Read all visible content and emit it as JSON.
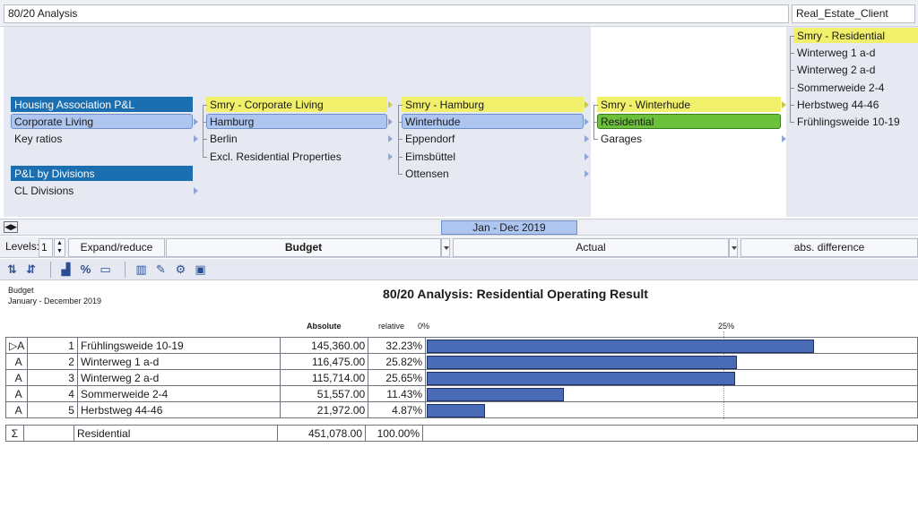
{
  "window": {
    "title": "80/20 Analysis",
    "client": "Real_Estate_Client"
  },
  "nav": {
    "col1": [
      {
        "label": "Housing Association P&L",
        "state": "dark"
      },
      {
        "label": "Corporate Living",
        "state": "light"
      },
      {
        "label": "Key ratios",
        "state": "none"
      },
      {
        "label": "P&L by Divisions",
        "state": "dark"
      },
      {
        "label": "CL Divisions",
        "state": "none"
      }
    ],
    "col2": [
      {
        "label": "Smry -  Corporate Living",
        "state": "smry"
      },
      {
        "label": "Hamburg",
        "state": "light"
      },
      {
        "label": "Berlin",
        "state": "none"
      },
      {
        "label": "Excl. Residential Properties",
        "state": "none"
      }
    ],
    "col3": [
      {
        "label": "Smry -  Hamburg",
        "state": "smry"
      },
      {
        "label": "Winterhude",
        "state": "light"
      },
      {
        "label": "Eppendorf",
        "state": "none"
      },
      {
        "label": "Eimsbüttel",
        "state": "none"
      },
      {
        "label": "Ottensen",
        "state": "none"
      }
    ],
    "col4": [
      {
        "label": "Smry -  Winterhude",
        "state": "smry"
      },
      {
        "label": "Residential",
        "state": "green"
      },
      {
        "label": "Garages",
        "state": "none"
      }
    ],
    "col5": [
      {
        "label": "Smry -  Residential",
        "state": "smry"
      },
      {
        "label": "Winterweg 1 a-d",
        "state": "none"
      },
      {
        "label": "Winterweg 2 a-d",
        "state": "none"
      },
      {
        "label": "Sommerweide 2-4",
        "state": "none"
      },
      {
        "label": "Herbstweg 44-46",
        "state": "none"
      },
      {
        "label": "Frühlingsweide 10-19",
        "state": "none"
      }
    ]
  },
  "period": {
    "label": "Jan - Dec 2019"
  },
  "levels_bar": {
    "levels_label": "Levels:",
    "levels_value": "1",
    "expand_label": "Expand/reduce",
    "col_budget": "Budget",
    "col_actual": "Actual",
    "col_diff": "abs. difference"
  },
  "toolbar": {
    "icons": [
      "sort-descending-icon",
      "sort-ascending-icon",
      "chart-icon",
      "percent-icon",
      "screen-icon",
      "columns-icon",
      "edit-icon",
      "gear-icon",
      "save-icon"
    ]
  },
  "report": {
    "meta_line1": "Budget",
    "meta_line2": "January - December 2019",
    "title": "80/20 Analysis: Residential Operating Result",
    "header_absolute": "Absolute",
    "header_relative": "relative",
    "axis_0": "0%",
    "axis_25": "25%",
    "rows": [
      {
        "type": "A",
        "expandable": true,
        "rank": "1",
        "name": "Frühlingsweide 10-19",
        "absolute": "145,360.00",
        "relative": "32.23%",
        "pct": 32.23
      },
      {
        "type": "A",
        "expandable": false,
        "rank": "2",
        "name": "Winterweg 1 a-d",
        "absolute": "116,475.00",
        "relative": "25.82%",
        "pct": 25.82
      },
      {
        "type": "A",
        "expandable": false,
        "rank": "3",
        "name": "Winterweg 2 a-d",
        "absolute": "115,714.00",
        "relative": "25.65%",
        "pct": 25.65
      },
      {
        "type": "A",
        "expandable": false,
        "rank": "4",
        "name": "Sommerweide 2-4",
        "absolute": "51,557.00",
        "relative": "11.43%",
        "pct": 11.43
      },
      {
        "type": "A",
        "expandable": false,
        "rank": "5",
        "name": "Herbstweg 44-46",
        "absolute": "21,972.00",
        "relative": "4.87%",
        "pct": 4.87
      }
    ],
    "total": {
      "symbol": "Σ",
      "name": "Residential",
      "absolute": "451,078.00",
      "relative": "100.00%"
    }
  }
}
